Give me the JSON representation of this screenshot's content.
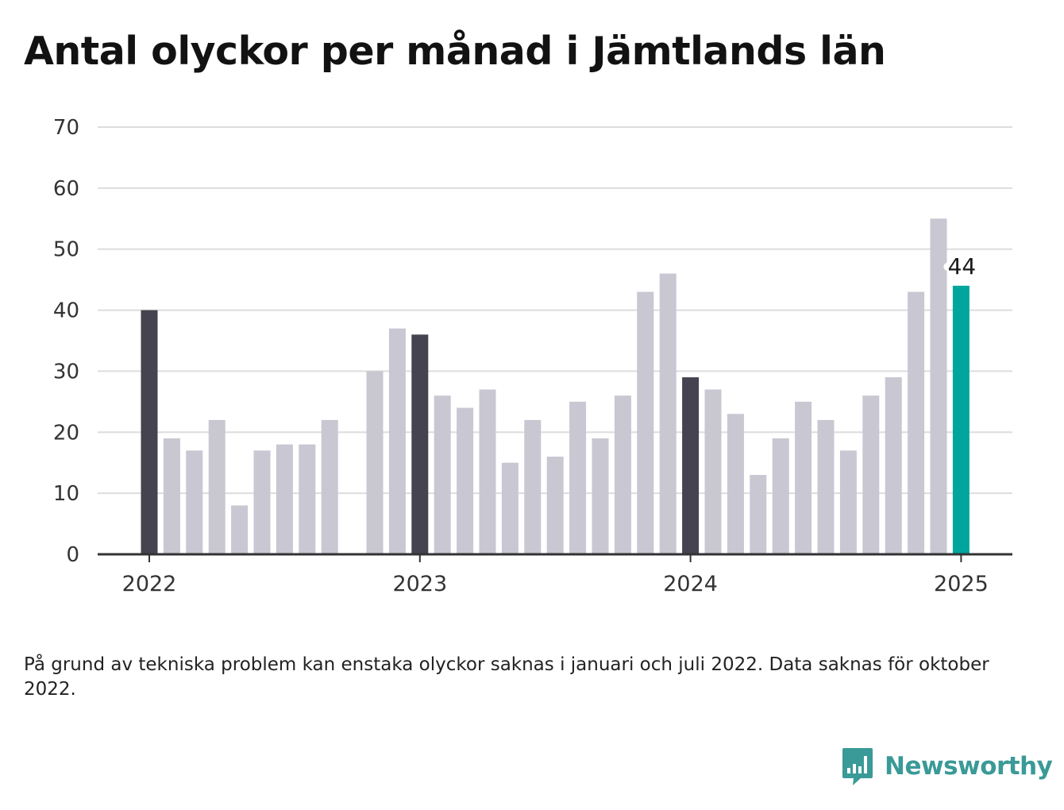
{
  "title": "Antal olyckor per månad i Jämtlands län",
  "footnote": "På grund av tekniska problem kan enstaka olyckor saknas i januari och juli 2022. Data saknas för oktober 2022.",
  "brand": {
    "name": "Newsworthy",
    "logo_icon": "newsworthy-logo-icon"
  },
  "colors": {
    "bar": "#c8c7d2",
    "january_bar": "#44434f",
    "latest_bar": "#00a69c",
    "grid": "#dddddd",
    "axis": "#333333",
    "brand": "#3a9a97"
  },
  "chart_data": {
    "type": "bar",
    "title": "Antal olyckor per månad i Jämtlands län",
    "xlabel": "",
    "ylabel": "",
    "ylim": [
      0,
      70
    ],
    "yticks": [
      0,
      10,
      20,
      30,
      40,
      50,
      60,
      70
    ],
    "xticks": [
      "2022",
      "2023",
      "2024",
      "2025"
    ],
    "grid": true,
    "legend": "none",
    "categories": [
      "2022-01",
      "2022-02",
      "2022-03",
      "2022-04",
      "2022-05",
      "2022-06",
      "2022-07",
      "2022-08",
      "2022-09",
      "2022-10",
      "2022-11",
      "2022-12",
      "2023-01",
      "2023-02",
      "2023-03",
      "2023-04",
      "2023-05",
      "2023-06",
      "2023-07",
      "2023-08",
      "2023-09",
      "2023-10",
      "2023-11",
      "2023-12",
      "2024-01",
      "2024-02",
      "2024-03",
      "2024-04",
      "2024-05",
      "2024-06",
      "2024-07",
      "2024-08",
      "2024-09",
      "2024-10",
      "2024-11",
      "2024-12",
      "2025-01"
    ],
    "values": [
      40,
      19,
      17,
      22,
      8,
      17,
      18,
      18,
      22,
      null,
      30,
      37,
      36,
      26,
      24,
      27,
      15,
      22,
      16,
      25,
      19,
      26,
      43,
      46,
      29,
      27,
      23,
      13,
      19,
      25,
      22,
      17,
      26,
      29,
      43,
      55,
      44
    ],
    "annotation": {
      "category": "2025-01",
      "value": 44,
      "label": "44"
    }
  }
}
